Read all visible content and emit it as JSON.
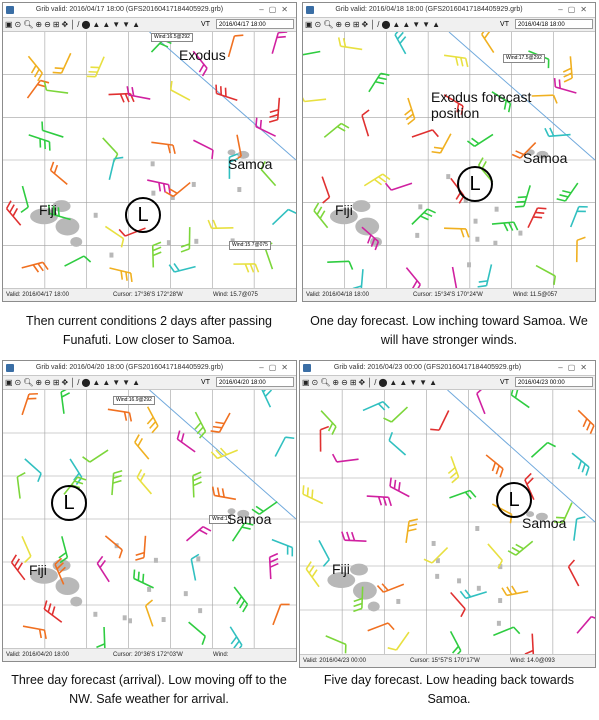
{
  "window_title_suffix": " (GFS20160417184405929.grb)",
  "toolbar": {
    "vt_label": "VT"
  },
  "status_labels": {
    "valid": "Valid:",
    "cursor": "Cursor:",
    "wind": "Wind:"
  },
  "panels": [
    {
      "title": "Grib valid: 2016/04/17 18:00",
      "date": "2016/04/17 18:00",
      "status": {
        "valid": "2016/04/17 18:00",
        "cursor": "17°36'S 172°28'W",
        "wind": "15.7@075"
      },
      "tooltips": [
        "Wind:16.5@292",
        "Wind:15.7@075"
      ],
      "labels": {
        "exodus": "Exodus",
        "samoa": "Samoa",
        "fiji": "Fiji",
        "low": "L"
      },
      "caption": "Then current conditions 2 days after passing Funafuti.  Low closer to Samoa."
    },
    {
      "title": "Grib valid: 2016/04/18 18:00",
      "date": "2016/04/18 18:00",
      "status": {
        "valid": "2016/04/18 18:00",
        "cursor": "15°34'S 170°24'W",
        "wind": "11.5@057"
      },
      "tooltips": [
        "Wind:17.5@292"
      ],
      "labels": {
        "exodus": "Exodus forecast position",
        "samoa": "Samoa",
        "fiji": "Fiji",
        "low": "L"
      },
      "caption": "One day forecast.  Low inching toward Samoa.  We will have stronger winds."
    },
    {
      "title": "Grib valid: 2016/04/20 18:00",
      "date": "2016/04/20 18:00",
      "status": {
        "valid": "2016/04/20 18:00",
        "cursor": "20°36'S 172°03'W",
        "wind": ""
      },
      "tooltips": [
        "Wind:16.9@292",
        "Wind:1"
      ],
      "labels": {
        "samoa": "Samoa",
        "fiji": "Fiji",
        "low": "L"
      },
      "caption": "Three day forecast (arrival).  Low moving off to the NW.  Safe weather for arrival."
    },
    {
      "title": "Grib valid: 2016/04/23 00:00",
      "date": "2016/04/23 00:00",
      "status": {
        "valid": "2016/04/23 00:00",
        "cursor": "15°57'S 170°17'W",
        "wind": "14.0@093"
      },
      "tooltips": [],
      "labels": {
        "samoa": "Samoa",
        "fiji": "Fiji",
        "low": "L"
      },
      "caption": "Five day forecast.  Low heading back towards Samoa."
    }
  ],
  "colors": {
    "grid": "#a0a0a0",
    "land": "#b8b8b8",
    "track": "#6fa8dc",
    "winds": [
      "#2ecc40",
      "#7cd63a",
      "#e8e040",
      "#f0b020",
      "#f07020",
      "#e03030",
      "#d020a0",
      "#30c0c0"
    ]
  },
  "icons": [
    "cursor-icon",
    "zoom-in-icon",
    "zoom-out-icon",
    "zoom-fit-icon",
    "pan-icon",
    "front-icon",
    "pressure-icon"
  ]
}
